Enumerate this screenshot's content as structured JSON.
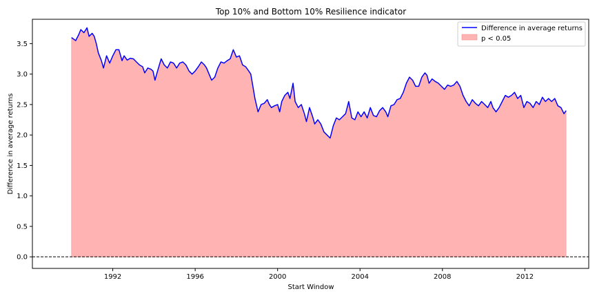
{
  "chart_data": {
    "type": "line",
    "title": "Top 10% and Bottom 10% Resilience indicator",
    "xlabel": "Start Window",
    "ylabel": "Difference in average returns",
    "xlim": [
      1988.1,
      2015.1
    ],
    "ylim": [
      -0.19,
      3.9
    ],
    "xticks": [
      1992,
      1996,
      2000,
      2004,
      2008,
      2012
    ],
    "yticks": [
      0.0,
      0.5,
      1.0,
      1.5,
      2.0,
      2.5,
      3.0,
      3.5
    ],
    "ytick_labels": [
      "0.0",
      "0.5",
      "1.0",
      "1.5",
      "2.0",
      "2.5",
      "3.0",
      "3.5"
    ],
    "legend_position": "top-right",
    "legend": [
      {
        "label": "Difference in average returns",
        "kind": "line",
        "color": "#0000ff"
      },
      {
        "label": "p < 0.05",
        "kind": "patch",
        "color": "#ffb3b3"
      }
    ],
    "reference_line": {
      "y": 0.0,
      "style": "dashed",
      "color": "#000000"
    },
    "significance_region": {
      "label": "p < 0.05",
      "from": 1990.0,
      "to": 2014.0,
      "color": "#ffb3b3"
    },
    "series": [
      {
        "name": "Difference in average returns",
        "color": "#0000ff",
        "points": [
          [
            1990.0,
            3.6
          ],
          [
            1990.2,
            3.55
          ],
          [
            1990.35,
            3.65
          ],
          [
            1990.45,
            3.73
          ],
          [
            1990.6,
            3.68
          ],
          [
            1990.75,
            3.76
          ],
          [
            1990.85,
            3.62
          ],
          [
            1991.0,
            3.67
          ],
          [
            1991.1,
            3.62
          ],
          [
            1991.2,
            3.5
          ],
          [
            1991.3,
            3.35
          ],
          [
            1991.45,
            3.22
          ],
          [
            1991.55,
            3.1
          ],
          [
            1991.7,
            3.3
          ],
          [
            1991.85,
            3.18
          ],
          [
            1992.0,
            3.3
          ],
          [
            1992.15,
            3.4
          ],
          [
            1992.3,
            3.4
          ],
          [
            1992.45,
            3.22
          ],
          [
            1992.55,
            3.3
          ],
          [
            1992.7,
            3.23
          ],
          [
            1992.85,
            3.26
          ],
          [
            1993.0,
            3.25
          ],
          [
            1993.15,
            3.2
          ],
          [
            1993.3,
            3.15
          ],
          [
            1993.45,
            3.12
          ],
          [
            1993.55,
            3.02
          ],
          [
            1993.7,
            3.1
          ],
          [
            1993.85,
            3.08
          ],
          [
            1993.95,
            3.05
          ],
          [
            1994.05,
            2.9
          ],
          [
            1994.2,
            3.08
          ],
          [
            1994.35,
            3.25
          ],
          [
            1994.5,
            3.15
          ],
          [
            1994.65,
            3.1
          ],
          [
            1994.8,
            3.2
          ],
          [
            1994.95,
            3.18
          ],
          [
            1995.1,
            3.1
          ],
          [
            1995.25,
            3.18
          ],
          [
            1995.4,
            3.2
          ],
          [
            1995.55,
            3.15
          ],
          [
            1995.7,
            3.05
          ],
          [
            1995.85,
            3.0
          ],
          [
            1996.0,
            3.05
          ],
          [
            1996.15,
            3.12
          ],
          [
            1996.3,
            3.2
          ],
          [
            1996.45,
            3.15
          ],
          [
            1996.55,
            3.1
          ],
          [
            1996.7,
            2.98
          ],
          [
            1996.8,
            2.9
          ],
          [
            1996.95,
            2.95
          ],
          [
            1997.1,
            3.1
          ],
          [
            1997.25,
            3.2
          ],
          [
            1997.4,
            3.18
          ],
          [
            1997.55,
            3.22
          ],
          [
            1997.7,
            3.25
          ],
          [
            1997.85,
            3.4
          ],
          [
            1998.0,
            3.28
          ],
          [
            1998.15,
            3.3
          ],
          [
            1998.3,
            3.15
          ],
          [
            1998.45,
            3.12
          ],
          [
            1998.6,
            3.05
          ],
          [
            1998.7,
            3.0
          ],
          [
            1998.8,
            2.8
          ],
          [
            1998.9,
            2.6
          ],
          [
            1999.05,
            2.38
          ],
          [
            1999.2,
            2.5
          ],
          [
            1999.35,
            2.52
          ],
          [
            1999.5,
            2.58
          ],
          [
            1999.6,
            2.5
          ],
          [
            1999.7,
            2.45
          ],
          [
            1999.85,
            2.48
          ],
          [
            2000.0,
            2.5
          ],
          [
            2000.1,
            2.38
          ],
          [
            2000.2,
            2.55
          ],
          [
            2000.35,
            2.65
          ],
          [
            2000.5,
            2.7
          ],
          [
            2000.6,
            2.6
          ],
          [
            2000.75,
            2.85
          ],
          [
            2000.85,
            2.55
          ],
          [
            2001.0,
            2.45
          ],
          [
            2001.15,
            2.5
          ],
          [
            2001.3,
            2.35
          ],
          [
            2001.4,
            2.22
          ],
          [
            2001.55,
            2.45
          ],
          [
            2001.7,
            2.3
          ],
          [
            2001.8,
            2.18
          ],
          [
            2001.95,
            2.25
          ],
          [
            2002.1,
            2.18
          ],
          [
            2002.25,
            2.05
          ],
          [
            2002.4,
            2.0
          ],
          [
            2002.55,
            1.95
          ],
          [
            2002.7,
            2.15
          ],
          [
            2002.85,
            2.28
          ],
          [
            2003.0,
            2.25
          ],
          [
            2003.15,
            2.3
          ],
          [
            2003.3,
            2.35
          ],
          [
            2003.45,
            2.55
          ],
          [
            2003.6,
            2.28
          ],
          [
            2003.75,
            2.25
          ],
          [
            2003.9,
            2.38
          ],
          [
            2004.05,
            2.3
          ],
          [
            2004.2,
            2.38
          ],
          [
            2004.35,
            2.28
          ],
          [
            2004.5,
            2.45
          ],
          [
            2004.65,
            2.32
          ],
          [
            2004.8,
            2.3
          ],
          [
            2004.95,
            2.4
          ],
          [
            2005.1,
            2.45
          ],
          [
            2005.25,
            2.38
          ],
          [
            2005.35,
            2.3
          ],
          [
            2005.5,
            2.48
          ],
          [
            2005.65,
            2.5
          ],
          [
            2005.8,
            2.58
          ],
          [
            2005.95,
            2.6
          ],
          [
            2006.1,
            2.7
          ],
          [
            2006.25,
            2.85
          ],
          [
            2006.4,
            2.95
          ],
          [
            2006.55,
            2.9
          ],
          [
            2006.7,
            2.8
          ],
          [
            2006.85,
            2.8
          ],
          [
            2007.0,
            2.95
          ],
          [
            2007.15,
            3.02
          ],
          [
            2007.25,
            2.98
          ],
          [
            2007.35,
            2.85
          ],
          [
            2007.5,
            2.92
          ],
          [
            2007.65,
            2.88
          ],
          [
            2007.8,
            2.85
          ],
          [
            2007.95,
            2.8
          ],
          [
            2008.1,
            2.75
          ],
          [
            2008.25,
            2.82
          ],
          [
            2008.4,
            2.8
          ],
          [
            2008.55,
            2.82
          ],
          [
            2008.7,
            2.88
          ],
          [
            2008.85,
            2.8
          ],
          [
            2009.0,
            2.65
          ],
          [
            2009.15,
            2.55
          ],
          [
            2009.3,
            2.48
          ],
          [
            2009.45,
            2.58
          ],
          [
            2009.6,
            2.52
          ],
          [
            2009.75,
            2.48
          ],
          [
            2009.9,
            2.55
          ],
          [
            2010.05,
            2.5
          ],
          [
            2010.2,
            2.45
          ],
          [
            2010.35,
            2.55
          ],
          [
            2010.45,
            2.45
          ],
          [
            2010.6,
            2.38
          ],
          [
            2010.75,
            2.45
          ],
          [
            2010.9,
            2.55
          ],
          [
            2011.05,
            2.65
          ],
          [
            2011.2,
            2.62
          ],
          [
            2011.35,
            2.65
          ],
          [
            2011.5,
            2.7
          ],
          [
            2011.65,
            2.6
          ],
          [
            2011.8,
            2.65
          ],
          [
            2011.95,
            2.45
          ],
          [
            2012.1,
            2.55
          ],
          [
            2012.25,
            2.52
          ],
          [
            2012.4,
            2.45
          ],
          [
            2012.55,
            2.55
          ],
          [
            2012.7,
            2.5
          ],
          [
            2012.85,
            2.62
          ],
          [
            2013.0,
            2.55
          ],
          [
            2013.15,
            2.6
          ],
          [
            2013.3,
            2.55
          ],
          [
            2013.45,
            2.6
          ],
          [
            2013.6,
            2.48
          ],
          [
            2013.75,
            2.45
          ],
          [
            2013.9,
            2.35
          ],
          [
            2014.0,
            2.4
          ]
        ]
      }
    ]
  }
}
